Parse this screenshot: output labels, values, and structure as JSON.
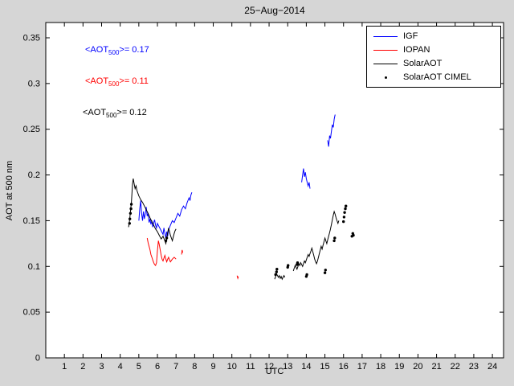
{
  "figure": {
    "background": "#d6d6d6",
    "plot_background": "#ffffff",
    "axis_color": "#000000"
  },
  "chart_data": {
    "type": "line",
    "title": "25−Aug−2014",
    "xlabel": "UTC",
    "ylabel": "AOT at 500 nm",
    "xlim": [
      0,
      24.6
    ],
    "ylim": [
      0,
      0.3667
    ],
    "grid": false,
    "legend_position": "top-right",
    "xticks": [
      1,
      2,
      3,
      4,
      5,
      6,
      7,
      8,
      9,
      10,
      11,
      12,
      13,
      14,
      15,
      16,
      17,
      18,
      19,
      20,
      21,
      22,
      23,
      24
    ],
    "xtick_labels": [
      "1",
      "2",
      "3",
      "4",
      "5",
      "6",
      "7",
      "8",
      "9",
      "10",
      "11",
      "12",
      "13",
      "14",
      "15",
      "16",
      "17",
      "18",
      "19",
      "20",
      "21",
      "22",
      "23",
      "24"
    ],
    "yticks": [
      0,
      0.05,
      0.1,
      0.15,
      0.2,
      0.25,
      0.3,
      0.35
    ],
    "ytick_labels": [
      "0",
      "0.05",
      "0.1",
      "0.15",
      "0.2",
      "0.25",
      "0.3",
      "0.35"
    ],
    "annotations": [
      {
        "pre": "<AOT",
        "sub": "500",
        "post": ">= 0.17",
        "color": "#0000ff"
      },
      {
        "pre": "<AOT",
        "sub": "500",
        "post": ">= 0.11",
        "color": "#ff0000"
      },
      {
        "pre": "<AOT",
        "sub": "500",
        "post": ">= 0.12",
        "color": "#000000"
      }
    ],
    "series": [
      {
        "name": "IGF",
        "color": "#0000ff",
        "style": "line",
        "segments": [
          [
            [
              5.0,
              0.15
            ],
            [
              5.05,
              0.163
            ],
            [
              5.1,
              0.172
            ],
            [
              5.15,
              0.158
            ],
            [
              5.2,
              0.15
            ],
            [
              5.25,
              0.16
            ],
            [
              5.3,
              0.152
            ],
            [
              5.35,
              0.158
            ],
            [
              5.4,
              0.165
            ],
            [
              5.45,
              0.155
            ],
            [
              5.5,
              0.158
            ],
            [
              5.55,
              0.148
            ],
            [
              5.6,
              0.152
            ],
            [
              5.65,
              0.146
            ],
            [
              5.7,
              0.15
            ],
            [
              5.75,
              0.143
            ],
            [
              5.8,
              0.148
            ],
            [
              5.85,
              0.151
            ],
            [
              5.9,
              0.145
            ],
            [
              5.95,
              0.142
            ],
            [
              6.0,
              0.147
            ],
            [
              6.1,
              0.143
            ],
            [
              6.2,
              0.139
            ],
            [
              6.3,
              0.135
            ],
            [
              6.35,
              0.142
            ],
            [
              6.4,
              0.136
            ],
            [
              6.45,
              0.131
            ],
            [
              6.5,
              0.138
            ],
            [
              6.55,
              0.133
            ],
            [
              6.6,
              0.14
            ],
            [
              6.7,
              0.145
            ],
            [
              6.8,
              0.15
            ],
            [
              6.9,
              0.148
            ],
            [
              7.0,
              0.153
            ],
            [
              7.1,
              0.158
            ],
            [
              7.2,
              0.155
            ],
            [
              7.3,
              0.162
            ],
            [
              7.4,
              0.166
            ],
            [
              7.5,
              0.163
            ],
            [
              7.6,
              0.17
            ],
            [
              7.7,
              0.175
            ],
            [
              7.75,
              0.172
            ],
            [
              7.8,
              0.178
            ],
            [
              7.85,
              0.181
            ]
          ],
          [
            [
              13.75,
              0.192
            ],
            [
              13.8,
              0.2
            ],
            [
              13.85,
              0.207
            ],
            [
              13.9,
              0.198
            ],
            [
              13.95,
              0.203
            ],
            [
              14.0,
              0.196
            ],
            [
              14.05,
              0.192
            ],
            [
              14.1,
              0.188
            ],
            [
              14.15,
              0.192
            ],
            [
              14.2,
              0.185
            ]
          ],
          [
            [
              15.15,
              0.238
            ],
            [
              15.2,
              0.231
            ],
            [
              15.25,
              0.243
            ],
            [
              15.3,
              0.24
            ],
            [
              15.35,
              0.248
            ],
            [
              15.4,
              0.255
            ],
            [
              15.45,
              0.252
            ],
            [
              15.5,
              0.261
            ],
            [
              15.55,
              0.266
            ]
          ]
        ]
      },
      {
        "name": "IOPAN",
        "color": "#ff0000",
        "style": "line",
        "segments": [
          [
            [
              5.45,
              0.131
            ],
            [
              5.5,
              0.126
            ],
            [
              5.55,
              0.122
            ],
            [
              5.6,
              0.118
            ],
            [
              5.65,
              0.113
            ],
            [
              5.7,
              0.11
            ],
            [
              5.75,
              0.107
            ],
            [
              5.8,
              0.104
            ],
            [
              5.85,
              0.102
            ],
            [
              5.9,
              0.101
            ],
            [
              5.95,
              0.104
            ],
            [
              6.0,
              0.117
            ],
            [
              6.05,
              0.128
            ],
            [
              6.1,
              0.124
            ],
            [
              6.15,
              0.118
            ],
            [
              6.2,
              0.112
            ],
            [
              6.25,
              0.108
            ],
            [
              6.3,
              0.106
            ],
            [
              6.35,
              0.109
            ],
            [
              6.4,
              0.112
            ],
            [
              6.45,
              0.108
            ],
            [
              6.5,
              0.105
            ],
            [
              6.55,
              0.108
            ],
            [
              6.6,
              0.11
            ],
            [
              6.65,
              0.107
            ],
            [
              6.7,
              0.105
            ],
            [
              6.8,
              0.108
            ],
            [
              6.9,
              0.11
            ],
            [
              7.0,
              0.108
            ]
          ],
          [
            [
              7.3,
              0.113
            ],
            [
              7.33,
              0.118
            ],
            [
              7.36,
              0.115
            ]
          ],
          [
            [
              10.28,
              0.09
            ],
            [
              10.32,
              0.087
            ],
            [
              10.35,
              0.089
            ]
          ]
        ]
      },
      {
        "name": "SolarAOT",
        "color": "#000000",
        "style": "line",
        "segments": [
          [
            [
              4.45,
              0.143
            ],
            [
              4.5,
              0.15
            ],
            [
              4.55,
              0.16
            ],
            [
              4.6,
              0.17
            ],
            [
              4.63,
              0.18
            ],
            [
              4.66,
              0.19
            ],
            [
              4.7,
              0.196
            ],
            [
              4.75,
              0.19
            ],
            [
              4.8,
              0.185
            ],
            [
              4.85,
              0.188
            ],
            [
              4.9,
              0.183
            ],
            [
              4.95,
              0.18
            ],
            [
              5.0,
              0.177
            ],
            [
              5.1,
              0.173
            ],
            [
              5.2,
              0.17
            ],
            [
              5.3,
              0.166
            ],
            [
              5.4,
              0.162
            ],
            [
              5.5,
              0.158
            ],
            [
              5.6,
              0.153
            ],
            [
              5.7,
              0.149
            ],
            [
              5.8,
              0.145
            ],
            [
              5.9,
              0.141
            ],
            [
              6.0,
              0.138
            ],
            [
              6.1,
              0.134
            ],
            [
              6.2,
              0.13
            ],
            [
              6.3,
              0.133
            ],
            [
              6.4,
              0.128
            ],
            [
              6.45,
              0.125
            ],
            [
              6.5,
              0.13
            ],
            [
              6.55,
              0.137
            ],
            [
              6.6,
              0.142
            ],
            [
              6.65,
              0.138
            ],
            [
              6.7,
              0.134
            ],
            [
              6.75,
              0.131
            ],
            [
              6.8,
              0.128
            ],
            [
              6.85,
              0.132
            ],
            [
              6.9,
              0.136
            ],
            [
              6.95,
              0.139
            ],
            [
              7.0,
              0.141
            ]
          ],
          [
            [
              12.3,
              0.086
            ],
            [
              12.35,
              0.089
            ],
            [
              12.4,
              0.092
            ],
            [
              12.45,
              0.09
            ],
            [
              12.5,
              0.088
            ],
            [
              12.55,
              0.09
            ],
            [
              12.6,
              0.087
            ],
            [
              12.65,
              0.089
            ],
            [
              12.7,
              0.086
            ],
            [
              12.75,
              0.088
            ],
            [
              12.8,
              0.09
            ],
            [
              12.85,
              0.088
            ]
          ],
          [
            [
              13.3,
              0.095
            ],
            [
              13.35,
              0.098
            ],
            [
              13.4,
              0.101
            ],
            [
              13.45,
              0.099
            ],
            [
              13.5,
              0.097
            ],
            [
              13.55,
              0.1
            ],
            [
              13.6,
              0.103
            ],
            [
              13.65,
              0.101
            ],
            [
              13.7,
              0.104
            ],
            [
              13.75,
              0.102
            ],
            [
              13.8,
              0.1
            ],
            [
              13.85,
              0.103
            ],
            [
              13.9,
              0.106
            ],
            [
              13.95,
              0.104
            ],
            [
              14.0,
              0.107
            ],
            [
              14.05,
              0.11
            ],
            [
              14.1,
              0.113
            ],
            [
              14.15,
              0.111
            ],
            [
              14.2,
              0.114
            ],
            [
              14.25,
              0.117
            ],
            [
              14.3,
              0.12
            ],
            [
              14.35,
              0.116
            ],
            [
              14.4,
              0.112
            ],
            [
              14.45,
              0.108
            ],
            [
              14.5,
              0.105
            ],
            [
              14.55,
              0.103
            ],
            [
              14.6,
              0.106
            ],
            [
              14.65,
              0.11
            ],
            [
              14.7,
              0.114
            ],
            [
              14.75,
              0.118
            ],
            [
              14.8,
              0.122
            ],
            [
              14.85,
              0.119
            ],
            [
              14.9,
              0.123
            ],
            [
              14.95,
              0.127
            ],
            [
              15.0,
              0.131
            ],
            [
              15.05,
              0.128
            ],
            [
              15.1,
              0.125
            ],
            [
              15.15,
              0.129
            ],
            [
              15.2,
              0.133
            ],
            [
              15.25,
              0.137
            ],
            [
              15.3,
              0.141
            ],
            [
              15.35,
              0.146
            ],
            [
              15.4,
              0.151
            ],
            [
              15.45,
              0.156
            ],
            [
              15.5,
              0.16
            ],
            [
              15.55,
              0.157
            ],
            [
              15.6,
              0.153
            ],
            [
              15.65,
              0.15
            ],
            [
              15.7,
              0.147
            ],
            [
              15.75,
              0.15
            ]
          ]
        ]
      },
      {
        "name": "SolarAOT CIMEL",
        "color": "#000000",
        "style": "scatter",
        "points": [
          [
            4.5,
            0.147
          ],
          [
            4.52,
            0.152
          ],
          [
            4.55,
            0.158
          ],
          [
            4.58,
            0.163
          ],
          [
            4.6,
            0.168
          ],
          [
            6.45,
            0.128
          ],
          [
            6.5,
            0.131
          ],
          [
            12.35,
            0.091
          ],
          [
            12.4,
            0.094
          ],
          [
            12.42,
            0.097
          ],
          [
            13.0,
            0.099
          ],
          [
            13.02,
            0.101
          ],
          [
            13.5,
            0.102
          ],
          [
            13.53,
            0.104
          ],
          [
            14.0,
            0.089
          ],
          [
            14.03,
            0.091
          ],
          [
            15.0,
            0.093
          ],
          [
            15.03,
            0.096
          ],
          [
            15.5,
            0.128
          ],
          [
            15.53,
            0.131
          ],
          [
            16.0,
            0.149
          ],
          [
            16.03,
            0.154
          ],
          [
            16.06,
            0.159
          ],
          [
            16.1,
            0.163
          ],
          [
            16.13,
            0.166
          ],
          [
            16.45,
            0.133
          ],
          [
            16.5,
            0.136
          ],
          [
            16.53,
            0.134
          ]
        ]
      }
    ]
  }
}
